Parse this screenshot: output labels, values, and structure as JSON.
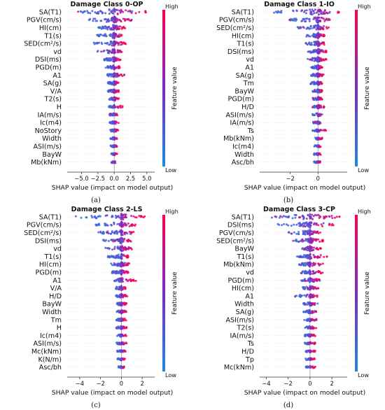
{
  "colorbar": {
    "high_label": "High",
    "low_label": "Low",
    "title": "Feature value",
    "low_color": "#1e88e5",
    "high_color": "#ff0052"
  },
  "chart_data": [
    {
      "type": "scatter",
      "panel_label": "(a)",
      "title": "Damage Class 0-OP",
      "xlabel": "SHAP value (impact on model output)",
      "xlim": [
        -7.2,
        6.2
      ],
      "xticks": [
        -5.0,
        -2.5,
        0.0,
        2.5,
        5.0
      ],
      "xtick_labels": [
        "−5.0",
        "−2.5",
        "0.0",
        "2.5",
        "5.0"
      ],
      "features": [
        {
          "name": "SA(T1)",
          "spread": [
            -5.6,
            5.0
          ]
        },
        {
          "name": "PGV(cm/s)",
          "spread": [
            -4.0,
            3.0
          ]
        },
        {
          "name": "HI(cm)",
          "spread": [
            -2.8,
            1.8
          ]
        },
        {
          "name": "T1(s)",
          "spread": [
            -2.8,
            1.2
          ]
        },
        {
          "name": "SED(cm²/s)",
          "spread": [
            -3.2,
            1.8
          ]
        },
        {
          "name": "vd",
          "spread": [
            -2.6,
            1.2
          ]
        },
        {
          "name": "DSI(ms)",
          "spread": [
            -1.6,
            1.0
          ]
        },
        {
          "name": "PGD(m)",
          "spread": [
            -1.4,
            0.9
          ]
        },
        {
          "name": "A1",
          "spread": [
            -1.1,
            1.6
          ]
        },
        {
          "name": "SA(g)",
          "spread": [
            -1.0,
            0.8
          ]
        },
        {
          "name": "V/A",
          "spread": [
            -1.0,
            0.7
          ]
        },
        {
          "name": "T2(s)",
          "spread": [
            -0.9,
            0.7
          ]
        },
        {
          "name": "H",
          "spread": [
            -0.8,
            1.5
          ]
        },
        {
          "name": "IA(m/s)",
          "spread": [
            -0.8,
            0.6
          ]
        },
        {
          "name": "Ic(m4)",
          "spread": [
            -0.7,
            0.7
          ]
        },
        {
          "name": "NoStory",
          "spread": [
            -0.6,
            0.6
          ]
        },
        {
          "name": "Width",
          "spread": [
            -0.6,
            0.5
          ]
        },
        {
          "name": "ASI(m/s)",
          "spread": [
            -0.6,
            0.5
          ]
        },
        {
          "name": "BayW",
          "spread": [
            -0.5,
            0.5
          ]
        },
        {
          "name": "Mb(kNm)",
          "spread": [
            -0.5,
            0.4
          ]
        }
      ]
    },
    {
      "type": "scatter",
      "panel_label": "(b)",
      "title": "Damage Class 1-IO",
      "xlabel": "SHAP value (impact on model output)",
      "xlim": [
        -4.2,
        2.1
      ],
      "xticks": [
        -2,
        0
      ],
      "xtick_labels": [
        "−2",
        "0"
      ],
      "features": [
        {
          "name": "SA(T1)",
          "spread": [
            -3.3,
            1.6
          ]
        },
        {
          "name": "PGV(cm/s)",
          "spread": [
            -2.1,
            1.0
          ]
        },
        {
          "name": "SED(cm²/s)",
          "spread": [
            -1.5,
            0.8
          ]
        },
        {
          "name": "HI(cm)",
          "spread": [
            -1.0,
            0.5
          ]
        },
        {
          "name": "T1(s)",
          "spread": [
            -0.9,
            0.6
          ]
        },
        {
          "name": "DSI(ms)",
          "spread": [
            -0.8,
            0.6
          ]
        },
        {
          "name": "vd",
          "spread": [
            -0.9,
            0.6
          ]
        },
        {
          "name": "A1",
          "spread": [
            -0.5,
            0.3
          ]
        },
        {
          "name": "SA(g)",
          "spread": [
            -0.5,
            0.4
          ]
        },
        {
          "name": "Tm",
          "spread": [
            -0.6,
            0.3
          ]
        },
        {
          "name": "BayW",
          "spread": [
            -0.4,
            0.3
          ]
        },
        {
          "name": "PGD(m)",
          "spread": [
            -0.4,
            0.3
          ]
        },
        {
          "name": "H/D",
          "spread": [
            -0.4,
            0.5
          ]
        },
        {
          "name": "ASI(m/s)",
          "spread": [
            -0.4,
            0.3
          ]
        },
        {
          "name": "IA(m/s)",
          "spread": [
            -0.4,
            0.3
          ]
        },
        {
          "name": "Ts",
          "spread": [
            -0.4,
            0.6
          ]
        },
        {
          "name": "Mb(kNm)",
          "spread": [
            -0.3,
            0.3
          ]
        },
        {
          "name": "Ic(m4)",
          "spread": [
            -0.3,
            0.2
          ]
        },
        {
          "name": "Width",
          "spread": [
            -0.3,
            0.2
          ]
        },
        {
          "name": "Asc/bh",
          "spread": [
            -0.3,
            0.2
          ]
        }
      ]
    },
    {
      "type": "scatter",
      "panel_label": "(c)",
      "title": "Damage Class 2-LS",
      "xlabel": "SHAP value (impact on model output)",
      "xlim": [
        -5.2,
        3.2
      ],
      "xticks": [
        -4,
        -2,
        0,
        2
      ],
      "xtick_labels": [
        "−4",
        "−2",
        "0",
        "2"
      ],
      "features": [
        {
          "name": "SA(T1)",
          "spread": [
            -4.4,
            2.4
          ]
        },
        {
          "name": "PGV(cm/s)",
          "spread": [
            -2.6,
            1.4
          ]
        },
        {
          "name": "SED(cm²/s)",
          "spread": [
            -2.2,
            1.2
          ]
        },
        {
          "name": "DSI(ms)",
          "spread": [
            -1.8,
            1.0
          ]
        },
        {
          "name": "vd",
          "spread": [
            -1.6,
            1.2
          ]
        },
        {
          "name": "T1(s)",
          "spread": [
            -1.3,
            0.9
          ]
        },
        {
          "name": "HI(cm)",
          "spread": [
            -1.0,
            0.8
          ]
        },
        {
          "name": "PGD(m)",
          "spread": [
            -0.9,
            0.7
          ]
        },
        {
          "name": "A1",
          "spread": [
            -0.8,
            1.4
          ]
        },
        {
          "name": "V/A",
          "spread": [
            -0.7,
            0.5
          ]
        },
        {
          "name": "H/D",
          "spread": [
            -0.6,
            0.6
          ]
        },
        {
          "name": "BayW",
          "spread": [
            -0.5,
            0.5
          ]
        },
        {
          "name": "Width",
          "spread": [
            -0.5,
            0.5
          ]
        },
        {
          "name": "Tm",
          "spread": [
            -0.5,
            0.5
          ]
        },
        {
          "name": "H",
          "spread": [
            -0.5,
            0.5
          ]
        },
        {
          "name": "Ic(m4)",
          "spread": [
            -0.4,
            0.5
          ]
        },
        {
          "name": "ASI(m/s)",
          "spread": [
            -0.5,
            0.6
          ]
        },
        {
          "name": "Mc(kNm)",
          "spread": [
            -0.4,
            0.5
          ]
        },
        {
          "name": "K(N/m)",
          "spread": [
            -0.4,
            0.4
          ]
        },
        {
          "name": "Asc/bh",
          "spread": [
            -0.3,
            0.3
          ]
        }
      ]
    },
    {
      "type": "scatter",
      "panel_label": "(d)",
      "title": "Damage Class 3-CP",
      "xlabel": "SHAP value (impact on model output)",
      "xlim": [
        -4.6,
        3.4
      ],
      "xticks": [
        -4,
        -2,
        0,
        2
      ],
      "xtick_labels": [
        "−4",
        "−2",
        "0",
        "2"
      ],
      "features": [
        {
          "name": "SA(T1)",
          "spread": [
            -3.8,
            2.8
          ]
        },
        {
          "name": "DSI(ms)",
          "spread": [
            -3.0,
            2.4
          ]
        },
        {
          "name": "PGV(cm/s)",
          "spread": [
            -2.0,
            1.0
          ]
        },
        {
          "name": "SED(cm²/s)",
          "spread": [
            -1.8,
            1.2
          ]
        },
        {
          "name": "BayW",
          "spread": [
            -0.8,
            1.0
          ]
        },
        {
          "name": "T1(s)",
          "spread": [
            -1.2,
            1.6
          ]
        },
        {
          "name": "Mb(kNm)",
          "spread": [
            -1.0,
            1.2
          ]
        },
        {
          "name": "vd",
          "spread": [
            -0.9,
            1.2
          ]
        },
        {
          "name": "PGD(m)",
          "spread": [
            -0.8,
            0.9
          ]
        },
        {
          "name": "HI(cm)",
          "spread": [
            -0.7,
            0.8
          ]
        },
        {
          "name": "A1",
          "spread": [
            -1.4,
            0.8
          ]
        },
        {
          "name": "Width",
          "spread": [
            -0.6,
            0.7
          ]
        },
        {
          "name": "SA(g)",
          "spread": [
            -0.6,
            0.6
          ]
        },
        {
          "name": "ASI(m/s)",
          "spread": [
            -0.6,
            0.6
          ]
        },
        {
          "name": "T2(s)",
          "spread": [
            -0.5,
            0.6
          ]
        },
        {
          "name": "IA(m/s)",
          "spread": [
            -0.5,
            0.5
          ]
        },
        {
          "name": "Ts",
          "spread": [
            -0.5,
            0.6
          ]
        },
        {
          "name": "H/D",
          "spread": [
            -0.5,
            0.5
          ]
        },
        {
          "name": "Tp",
          "spread": [
            -0.4,
            0.5
          ]
        },
        {
          "name": "Mc(kNm)",
          "spread": [
            -0.4,
            0.5
          ]
        }
      ]
    }
  ]
}
